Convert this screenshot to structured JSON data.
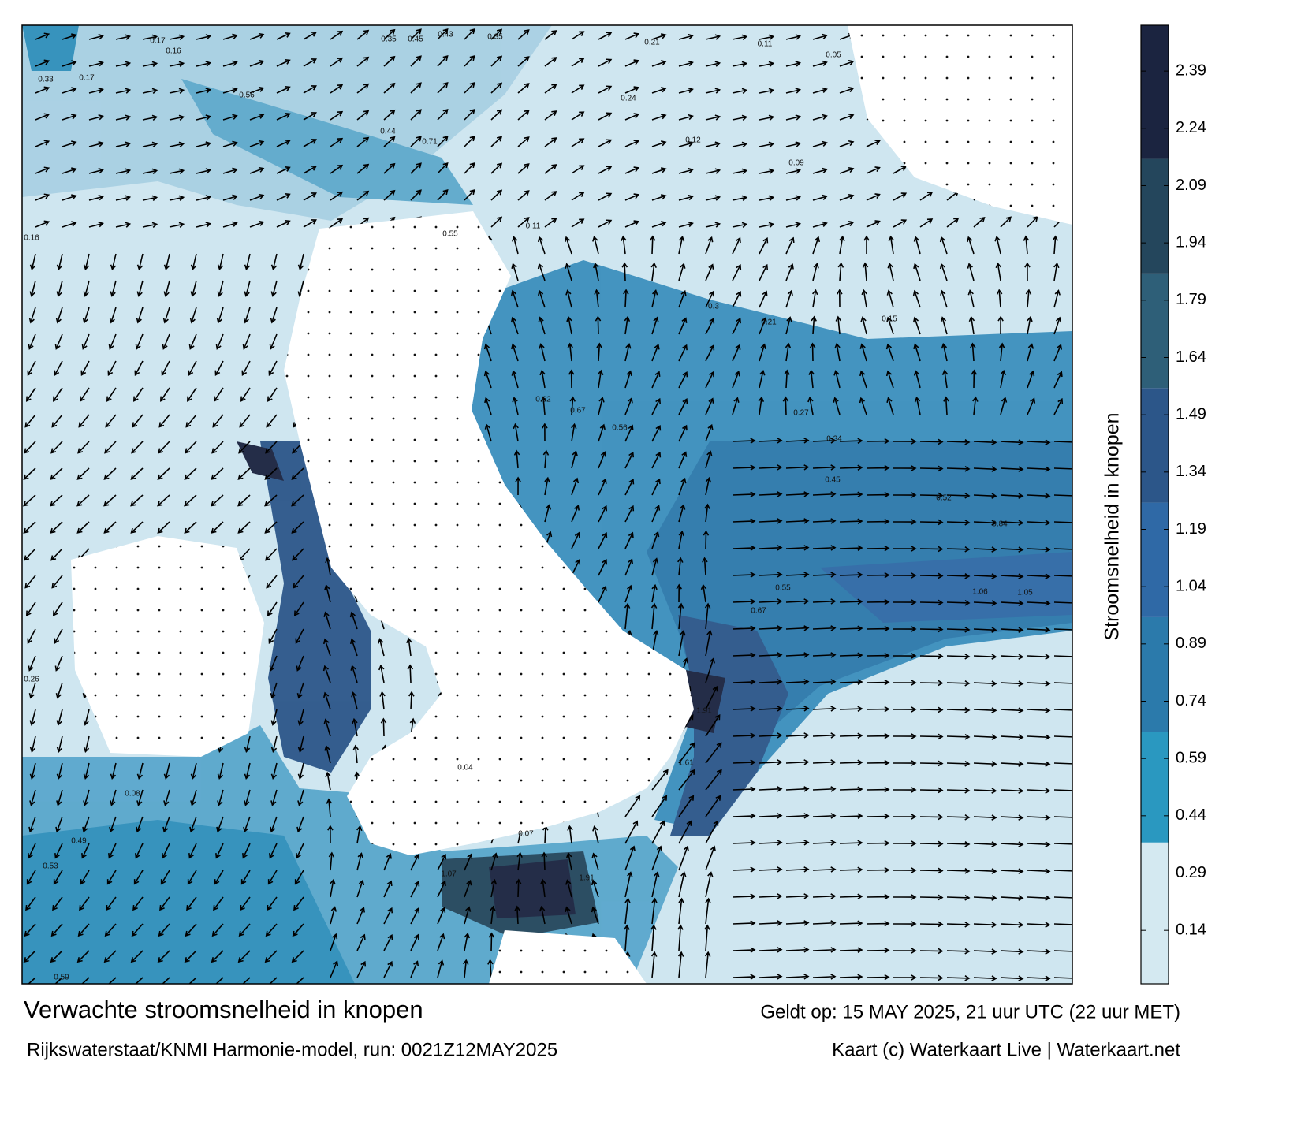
{
  "title": "Verwachte stroomsnelheid in knopen",
  "valid_time": "Geldt op: 15 MAY 2025, 21 uur UTC (22 uur MET)",
  "source": "Rijkswaterstaat/KNMI Harmonie-model, run: 0021Z12MAY2025",
  "credit": "Kaart (c) Waterkaart Live | Waterkaart.net",
  "colorbar": {
    "label": "Stroomsnelheid in knopen",
    "clim": [
      0,
      2.51
    ],
    "ticks": [
      0.14,
      0.29,
      0.44,
      0.59,
      0.74,
      0.89,
      1.04,
      1.19,
      1.34,
      1.49,
      1.64,
      1.79,
      1.94,
      2.09,
      2.24,
      2.39
    ],
    "bands": [
      {
        "from": 0,
        "to": 0.37,
        "color": "#d4e9f1"
      },
      {
        "from": 0.37,
        "to": 0.66,
        "color": "#2a98c0"
      },
      {
        "from": 0.66,
        "to": 0.96,
        "color": "#2b7aab"
      },
      {
        "from": 0.96,
        "to": 1.26,
        "color": "#2f69a6"
      },
      {
        "from": 1.26,
        "to": 1.56,
        "color": "#2c5689"
      },
      {
        "from": 1.56,
        "to": 1.86,
        "color": "#2e5f78"
      },
      {
        "from": 1.86,
        "to": 2.16,
        "color": "#24465c"
      },
      {
        "from": 2.16,
        "to": 2.51,
        "color": "#1b2440"
      }
    ]
  },
  "speed_labels": [
    0.17,
    0.16,
    0.35,
    0.45,
    0.43,
    0.35,
    0.21,
    0.11,
    0.05,
    0.33,
    0.17,
    0.56,
    0.44,
    0.71,
    0.24,
    0.12,
    0.09,
    0.16,
    0.55,
    0.11,
    0.3,
    0.21,
    0.15,
    0.62,
    0.67,
    0.56,
    0.27,
    0.34,
    0.45,
    0.52,
    0.84,
    1.05,
    1.06,
    0.55,
    0.67,
    1.91,
    1.61,
    1.07,
    1.91,
    0.08,
    0.53,
    0.59,
    0.07,
    0.04,
    0.26,
    0.49
  ]
}
